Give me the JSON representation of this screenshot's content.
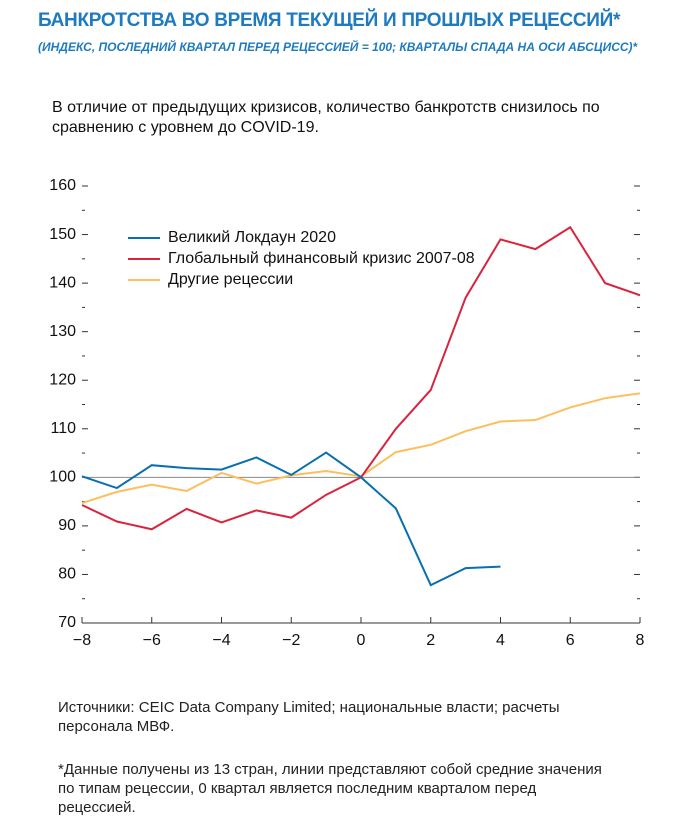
{
  "chart_data": {
    "type": "line",
    "title": "БАНКРОТСТВА ВО ВРЕМЯ ТЕКУЩЕЙ И ПРОШЛЫХ РЕЦЕССИЙ*",
    "subtitle": "(ИНДЕКС, ПОСЛЕДНИЙ КВАРТАЛ ПЕРЕД РЕЦЕССИЕЙ = 100; КВАРТАЛЫ СПАДА НА ОСИ АБСЦИСС)*",
    "annotation": "В отличие от предыдущих кризисов, количество банкротств снизилось по сравнению с уровнем до COVID-19.",
    "source": "Источники: CEIC Data Company Limited; национальные власти; расчеты персонала МВФ.",
    "footnote": "*Данные получены из 13 стран, линии представляют собой средние значения по типам рецессии, 0 квартал является последним кварталом перед рецессией.",
    "x": [
      -8,
      -7,
      -6,
      -5,
      -4,
      -3,
      -2,
      -1,
      0,
      1,
      2,
      3,
      4,
      5,
      6,
      7,
      8
    ],
    "series": [
      {
        "name": "Великий Локдаун 2020",
        "color": "#0a6fae",
        "values": [
          100.2,
          97.8,
          102.5,
          101.9,
          101.6,
          104.1,
          100.5,
          105.1,
          100,
          93.6,
          77.8,
          81.3,
          81.6,
          null,
          null,
          null,
          null
        ]
      },
      {
        "name": "Глобальный финансовый кризис 2007-08",
        "color": "#d8243f",
        "values": [
          94.3,
          90.9,
          89.3,
          93.5,
          90.7,
          93.2,
          91.7,
          96.4,
          100,
          110,
          118,
          137,
          149,
          147,
          151.5,
          140,
          137.5
        ]
      },
      {
        "name": "Другие рецессии",
        "color": "#fbbf5e",
        "values": [
          94.7,
          97,
          98.5,
          97.2,
          100.9,
          98.7,
          100.4,
          101.3,
          100.2,
          105.2,
          106.7,
          109.5,
          111.5,
          111.8,
          114.4,
          116.3,
          117.3
        ]
      }
    ],
    "xlim": [
      -8,
      8
    ],
    "xticks": [
      {
        "value": -8,
        "label": "−8"
      },
      {
        "value": -6,
        "label": "−6"
      },
      {
        "value": -4,
        "label": "−4"
      },
      {
        "value": -2,
        "label": "−2"
      },
      0,
      2,
      4,
      6,
      8
    ],
    "ylim": [
      70,
      160
    ],
    "yticks": [
      70,
      80,
      90,
      100,
      110,
      120,
      130,
      140,
      150,
      160
    ],
    "yminorticks": [
      75,
      85,
      95,
      105,
      115,
      125,
      135,
      145,
      155
    ],
    "hline": 100,
    "legend": "upper left"
  }
}
